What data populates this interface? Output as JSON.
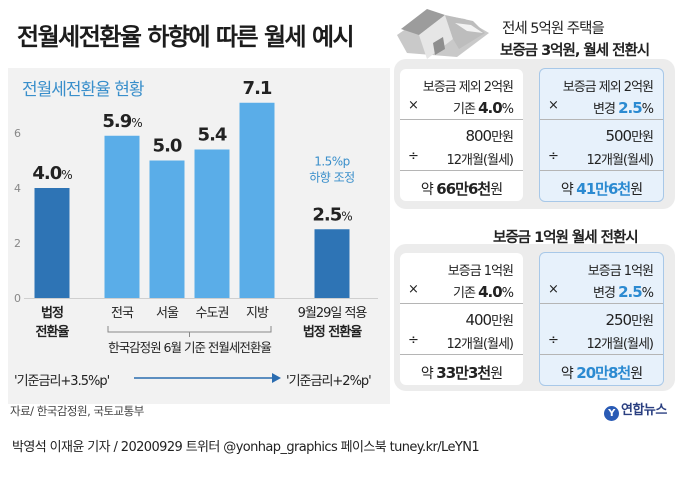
{
  "title": "전월세전환율 하향에 따른 월세 예시",
  "chart_data": {
    "type": "bar",
    "title": "전월세전환율 현황",
    "categories": [
      "법정 전환율",
      "전국",
      "서울",
      "수도권",
      "지방",
      "9월29일 적용 법정 전환율"
    ],
    "category_lines": [
      [
        "법정",
        "전환율"
      ],
      [
        "전국"
      ],
      [
        "서울"
      ],
      [
        "수도권"
      ],
      [
        "지방"
      ],
      [
        "9월29일 적용",
        "법정 전환율"
      ]
    ],
    "category_bold": [
      true,
      false,
      false,
      false,
      false,
      false
    ],
    "values": [
      4.0,
      5.9,
      5.0,
      5.4,
      7.1,
      2.5
    ],
    "value_labels": [
      "4.0",
      "5.9",
      "5.0",
      "5.4",
      "7.1",
      "2.5"
    ],
    "value_suffix": [
      "%",
      "%",
      "",
      "",
      "",
      "%"
    ],
    "ylim": [
      0,
      8
    ],
    "yticks": [
      0,
      2,
      4,
      6
    ],
    "grid": false,
    "bar_colors": [
      "#2e74b5",
      "#5aade8",
      "#5aade8",
      "#5aade8",
      "#5aade8",
      "#2e74b5"
    ],
    "bracket_label": "한국감정원 6월 기준 전월세전환율",
    "annotation": [
      "1.5%p",
      "하향 조정"
    ],
    "annotation_color": "#3a8fcb"
  },
  "conditions": {
    "before": "'기준금리+3.5%p'",
    "after": "'기준금리+2%p'"
  },
  "source": "자료/ 한국감정원, 국토교통부",
  "credit": "박영석 이재윤 기자 / 20200929  트위터 @yonhap_graphics  페이스북 tuney.kr/LeYN1",
  "logo": {
    "text": "연합뉴스",
    "mark": "Y"
  },
  "example1": {
    "heading_line1": "전세 5억원 주택을",
    "heading_line2": "보증금 3억원, 월세 전환시",
    "before": {
      "line1": "보증금 제외 2억원",
      "op1": "×",
      "rate_label": "기존",
      "rate": "4.0",
      "pct": "%",
      "amount": "800",
      "amount_unit": "만원",
      "op2": "÷",
      "months": "12개월(월세)",
      "result_prefix": "약",
      "result": "66만6천",
      "result_unit": "원"
    },
    "after": {
      "line1": "보증금 제외 2억원",
      "op1": "×",
      "rate_label": "변경",
      "rate": "2.5",
      "pct": "%",
      "amount": "500",
      "amount_unit": "만원",
      "op2": "÷",
      "months": "12개월(월세)",
      "result_prefix": "약",
      "result": "41만6천",
      "result_unit": "원"
    }
  },
  "example2": {
    "heading": "보증금 1억원 월세 전환시",
    "before": {
      "line1": "보증금 1억원",
      "op1": "×",
      "rate_label": "기존",
      "rate": "4.0",
      "pct": "%",
      "amount": "400",
      "amount_unit": "만원",
      "op2": "÷",
      "months": "12개월(월세)",
      "result_prefix": "약",
      "result": "33만3천",
      "result_unit": "원"
    },
    "after": {
      "line1": "보증금 1억원",
      "op1": "×",
      "rate_label": "변경",
      "rate": "2.5",
      "pct": "%",
      "amount": "250",
      "amount_unit": "만원",
      "op2": "÷",
      "months": "12개월(월세)",
      "result_prefix": "약",
      "result": "20만8천",
      "result_unit": "원"
    }
  },
  "colors": {
    "accent": "#2b8ad1",
    "dark_bar": "#2e74b5",
    "light_bar": "#5aade8",
    "panel": "#ececec"
  },
  "icons": {
    "house": "house-icon"
  }
}
